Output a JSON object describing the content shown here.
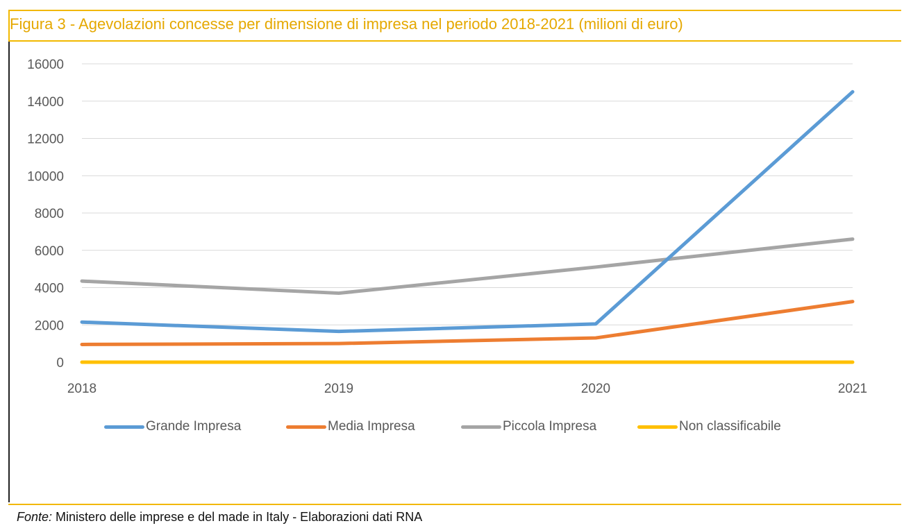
{
  "figure": {
    "title": "Figura 3 - Agevolazioni concesse per dimensione di impresa nel periodo 2018-2021 (milioni di euro)",
    "source_label": "Fonte:",
    "source_text": " Ministero delle imprese e del made in Italy - Elaborazioni dati RNA"
  },
  "colors": {
    "title": "#e5a800",
    "frame": "#f2b800",
    "grid": "#d9d9d9",
    "tick": "#595959"
  },
  "chart_data": {
    "type": "line",
    "x": [
      "2018",
      "2019",
      "2020",
      "2021"
    ],
    "ylim": [
      0,
      16000
    ],
    "yticks": [
      "0",
      "2000",
      "4000",
      "6000",
      "8000",
      "10000",
      "12000",
      "14000",
      "16000"
    ],
    "grid": true,
    "legend_position": "bottom",
    "series": [
      {
        "name": "Grande Impresa",
        "color": "#5b9bd5",
        "values": [
          2150,
          1650,
          2050,
          14500
        ]
      },
      {
        "name": "Media Impresa",
        "color": "#ed7d31",
        "values": [
          950,
          1000,
          1300,
          3250
        ]
      },
      {
        "name": "Piccola Impresa",
        "color": "#a5a5a5",
        "values": [
          4350,
          3700,
          5100,
          6600
        ]
      },
      {
        "name": "Non classificabile",
        "color": "#ffc000",
        "values": [
          0,
          0,
          0,
          0
        ]
      }
    ]
  }
}
